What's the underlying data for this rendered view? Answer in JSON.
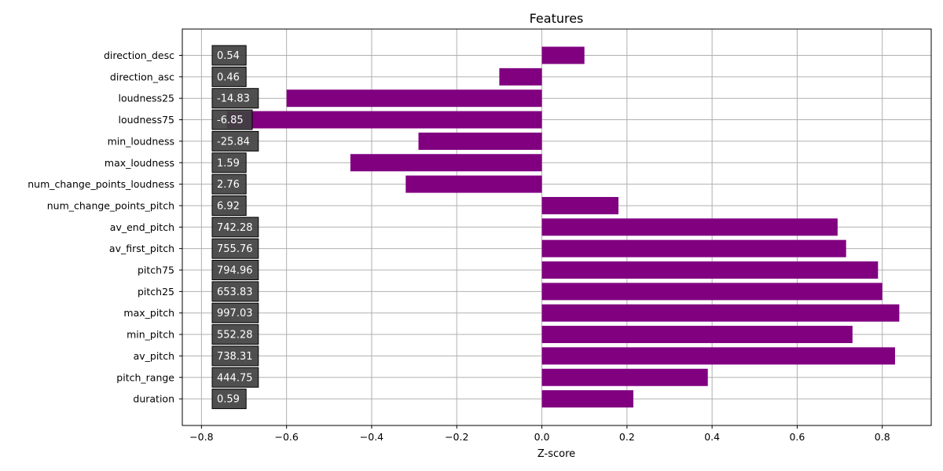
{
  "chart_data": {
    "type": "bar",
    "orientation": "horizontal",
    "title": "Features",
    "xlabel": "Z-score",
    "ylabel": "",
    "xlim": [
      -0.845,
      0.915
    ],
    "xticks": [
      -0.8,
      -0.6,
      -0.4,
      -0.2,
      0.0,
      0.2,
      0.4,
      0.6,
      0.8
    ],
    "xtick_labels": [
      "−0.8",
      "−0.6",
      "−0.4",
      "−0.2",
      "0.0",
      "0.2",
      "0.4",
      "0.6",
      "0.8"
    ],
    "grid": true,
    "bar_color": "#800080",
    "label_box_color": "#404040",
    "categories": [
      "direction_desc",
      "direction_asc",
      "loudness25",
      "loudness75",
      "min_loudness",
      "max_loudness",
      "num_change_points_loudness",
      "num_change_points_pitch",
      "av_end_pitch",
      "av_first_pitch",
      "pitch75",
      "pitch25",
      "max_pitch",
      "min_pitch",
      "av_pitch",
      "pitch_range",
      "duration"
    ],
    "values": [
      0.1,
      -0.1,
      -0.6,
      -0.74,
      -0.29,
      -0.45,
      -0.32,
      0.18,
      0.695,
      0.715,
      0.79,
      0.8,
      0.84,
      0.73,
      0.83,
      0.39,
      0.215
    ],
    "labels": [
      "0.54",
      "0.46",
      "-14.83",
      "-6.85",
      "-25.84",
      "1.59",
      "2.76",
      "6.92",
      "742.28",
      "755.76",
      "794.96",
      "653.83",
      "997.03",
      "552.28",
      "738.31",
      "444.75",
      "0.59"
    ]
  }
}
